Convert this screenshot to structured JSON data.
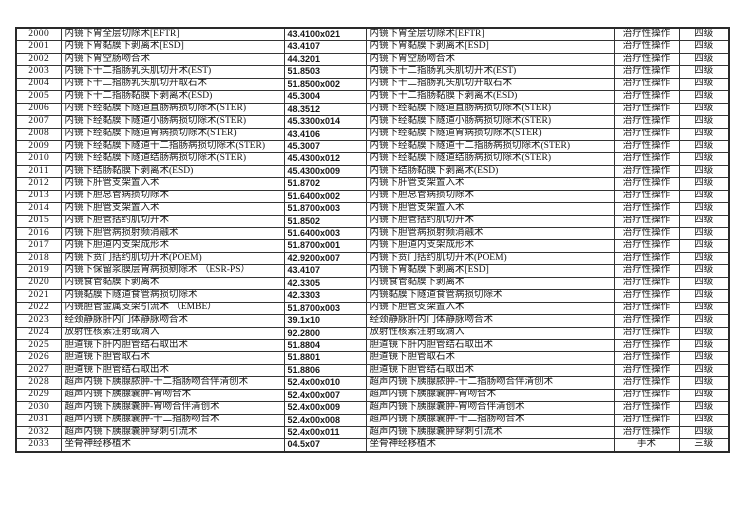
{
  "page": {
    "kind": "scanned-table-document",
    "background_color": "#ffffff",
    "border_color": "#2a2a2a",
    "text_color": "#141414"
  },
  "table": {
    "rows": [
      [
        "2000",
        "内镜下胃全层切除术[EFTR]",
        "43.4100x021",
        "内镜下胃全层切除术[EFTR]",
        "治疗性操作",
        "四级"
      ],
      [
        "2001",
        "内镜下胃黏膜下剥离术[ESD]",
        "43.4107",
        "内镜下胃黏膜下剥离术[ESD]",
        "治疗性操作",
        "四级"
      ],
      [
        "2002",
        "内镜下胃空肠吻合术",
        "44.3201",
        "内镜下胃空肠吻合术",
        "治疗性操作",
        "四级"
      ],
      [
        "2003",
        "内镜下十二指肠乳头肌切开术(EST)",
        "51.8503",
        "内镜下十二指肠乳头肌切开术(EST)",
        "治疗性操作",
        "四级"
      ],
      [
        "2004",
        "内镜下十二指肠乳头肌切开取石术",
        "51.8500x002",
        "内镜下十二指肠乳头肌切开取石术",
        "治疗性操作",
        "四级"
      ],
      [
        "2005",
        "内镜下十二指肠黏膜下剥离术(ESD)",
        "45.3004",
        "内镜下十二指肠黏膜下剥离术(ESD)",
        "治疗性操作",
        "四级"
      ],
      [
        "2006",
        "内镜下经黏膜下隧道直肠病损切除术(STER)",
        "48.3512",
        "内镜下经黏膜下隧道直肠病损切除术(STER)",
        "治疗性操作",
        "四级"
      ],
      [
        "2007",
        "内镜下经黏膜下隧道小肠病损切除术(STER)",
        "45.3300x014",
        "内镜下经黏膜下隧道小肠病损切除术(STER)",
        "治疗性操作",
        "四级"
      ],
      [
        "2008",
        "内镜下经黏膜下隧道胃病损切除术(STER)",
        "43.4106",
        "内镜下经黏膜下隧道胃病损切除术(STER)",
        "治疗性操作",
        "四级"
      ],
      [
        "2009",
        "内镜下经黏膜下隧道十二指肠病损切除术(STER)",
        "45.3007",
        "内镜下经黏膜下隧道十二指肠病损切除术(STER)",
        "治疗性操作",
        "四级"
      ],
      [
        "2010",
        "内镜下经黏膜下隧道结肠病损切除术(STER)",
        "45.4300x012",
        "内镜下经黏膜下隧道结肠病损切除术(STER)",
        "治疗性操作",
        "四级"
      ],
      [
        "2011",
        "内镜下结肠黏膜下剥离术(ESD)",
        "45.4300x009",
        "内镜下结肠黏膜下剥离术(ESD)",
        "治疗性操作",
        "四级"
      ],
      [
        "2012",
        "内镜下肝管支架置入术",
        "51.8702",
        "内镜下肝管支架置入术",
        "治疗性操作",
        "四级"
      ],
      [
        "2013",
        "内镜下胆总管病损切除术",
        "51.6400x002",
        "内镜下胆总管病损切除术",
        "治疗性操作",
        "四级"
      ],
      [
        "2014",
        "内镜下胆管支架置入术",
        "51.8700x003",
        "内镜下胆管支架置入术",
        "治疗性操作",
        "四级"
      ],
      [
        "2015",
        "内镜下胆管括约肌切开术",
        "51.8502",
        "内镜下胆管括约肌切开术",
        "治疗性操作",
        "四级"
      ],
      [
        "2016",
        "内镜下胆管病损射频消融术",
        "51.6400x003",
        "内镜下胆管病损射频消融术",
        "治疗性操作",
        "四级"
      ],
      [
        "2017",
        "内镜下胆道内支架成形术",
        "51.8700x001",
        "内镜下胆道内支架成形术",
        "治疗性操作",
        "四级"
      ],
      [
        "2018",
        "内镜下贲门括约肌切开术(POEM)",
        "42.9200x007",
        "内镜下贲门括约肌切开术(POEM)",
        "治疗性操作",
        "四级"
      ],
      [
        "2019",
        "内镜下保留浆膜层胃病损剜除术 （ESR-PS）",
        "43.4107",
        "内镜下胃黏膜下剥离术[ESD]",
        "治疗性操作",
        "四级"
      ],
      [
        "2020",
        "内镜食管黏膜下剥离术",
        "42.3305",
        "内镜食管黏膜下剥离术",
        "治疗性操作",
        "四级"
      ],
      [
        "2021",
        "内镜黏膜下隧道食管病损切除术",
        "42.3303",
        "内镜黏膜下隧道食管病损切除术",
        "治疗性操作",
        "四级"
      ],
      [
        "2022",
        "内镜胆管金属支架引流术 （EMBE）",
        "51.8700x003",
        "内镜下胆管支架置入术",
        "治疗性操作",
        "四级"
      ],
      [
        "2023",
        "经颈静脉肝内门体静脉吻合术",
        "39.1x10",
        "经颈静脉肝内门体静脉吻合术",
        "治疗性操作",
        "四级"
      ],
      [
        "2024",
        "放射性核素注射或滴入",
        "92.2800",
        "放射性核素注射或滴入",
        "治疗性操作",
        "四级"
      ],
      [
        "2025",
        "胆道镜下肝内胆管结石取出术",
        "51.8804",
        "胆道镜下肝内胆管结石取出术",
        "治疗性操作",
        "四级"
      ],
      [
        "2026",
        "胆道镜下胆管取石术",
        "51.8801",
        "胆道镜下胆管取石术",
        "治疗性操作",
        "四级"
      ],
      [
        "2027",
        "胆道镜下胆管结石取出术",
        "51.8806",
        "胆道镜下胆管结石取出术",
        "治疗性操作",
        "四级"
      ],
      [
        "2028",
        "超声内镜下胰腺脓肿-十二指肠吻合伴清创术",
        "52.4x00x010",
        "超声内镜下胰腺脓肿-十二指肠吻合伴清创术",
        "治疗性操作",
        "四级"
      ],
      [
        "2029",
        "超声内镜下胰腺囊肿-胃吻合术",
        "52.4x00x007",
        "超声内镜下胰腺囊肿-胃吻合术",
        "治疗性操作",
        "四级"
      ],
      [
        "2030",
        "超声内镜下胰腺囊肿-胃吻合伴清创术",
        "52.4x00x009",
        "超声内镜下胰腺囊肿-胃吻合伴清创术",
        "治疗性操作",
        "四级"
      ],
      [
        "2031",
        "超声内镜下胰腺囊肿-十二指肠吻合术",
        "52.4x00x008",
        "超声内镜下胰腺囊肿-十二指肠吻合术",
        "治疗性操作",
        "四级"
      ],
      [
        "2032",
        "超声内镜下胰腺囊肿穿刺引流术",
        "52.4x00x011",
        "超声内镜下胰腺囊肿穿刺引流术",
        "治疗性操作",
        "四级"
      ],
      [
        "2033",
        "坐骨神经移植术",
        "04.5x07",
        "坐骨神经移植术",
        "手术",
        "三级"
      ]
    ]
  }
}
